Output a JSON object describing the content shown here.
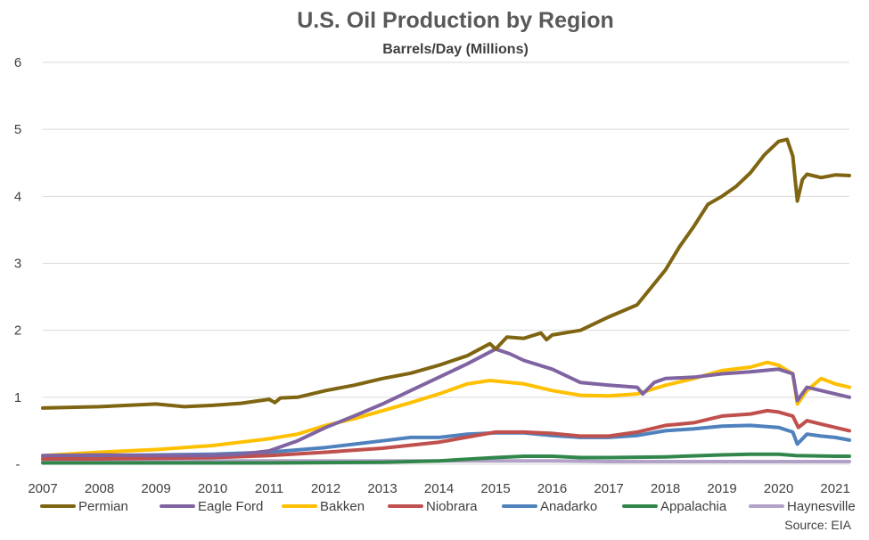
{
  "chart_data": {
    "type": "line",
    "title": "U.S. Oil Production by Region",
    "subtitle": "Barrels/Day (Millions)",
    "xlabel": "",
    "ylabel": "",
    "source": "Source: EIA",
    "xlim": [
      2007.0,
      2021.25
    ],
    "ylim": [
      0,
      6
    ],
    "x_ticks": [
      "2007",
      "2008",
      "2009",
      "2010",
      "2011",
      "2012",
      "2013",
      "2014",
      "2015",
      "2016",
      "2017",
      "2018",
      "2019",
      "2020",
      "2021"
    ],
    "y_ticks": [
      "-",
      "1",
      "2",
      "3",
      "4",
      "5",
      "6"
    ],
    "grid": "horizontal",
    "legend_position": "bottom",
    "series": [
      {
        "name": "Permian",
        "color": "#7F6512",
        "points": [
          [
            2007.0,
            0.84
          ],
          [
            2007.5,
            0.85
          ],
          [
            2008.0,
            0.86
          ],
          [
            2008.5,
            0.88
          ],
          [
            2009.0,
            0.9
          ],
          [
            2009.5,
            0.86
          ],
          [
            2010.0,
            0.88
          ],
          [
            2010.5,
            0.91
          ],
          [
            2011.0,
            0.97
          ],
          [
            2011.1,
            0.92
          ],
          [
            2011.2,
            0.99
          ],
          [
            2011.5,
            1.0
          ],
          [
            2012.0,
            1.1
          ],
          [
            2012.5,
            1.18
          ],
          [
            2013.0,
            1.28
          ],
          [
            2013.5,
            1.36
          ],
          [
            2014.0,
            1.48
          ],
          [
            2014.5,
            1.62
          ],
          [
            2014.9,
            1.8
          ],
          [
            2015.0,
            1.72
          ],
          [
            2015.2,
            1.9
          ],
          [
            2015.5,
            1.88
          ],
          [
            2015.8,
            1.96
          ],
          [
            2015.9,
            1.86
          ],
          [
            2016.0,
            1.93
          ],
          [
            2016.5,
            2.0
          ],
          [
            2017.0,
            2.2
          ],
          [
            2017.5,
            2.38
          ],
          [
            2018.0,
            2.9
          ],
          [
            2018.25,
            3.25
          ],
          [
            2018.5,
            3.55
          ],
          [
            2018.75,
            3.88
          ],
          [
            2019.0,
            4.0
          ],
          [
            2019.25,
            4.15
          ],
          [
            2019.5,
            4.35
          ],
          [
            2019.75,
            4.62
          ],
          [
            2020.0,
            4.82
          ],
          [
            2020.15,
            4.85
          ],
          [
            2020.25,
            4.6
          ],
          [
            2020.33,
            3.93
          ],
          [
            2020.42,
            4.25
          ],
          [
            2020.5,
            4.33
          ],
          [
            2020.75,
            4.28
          ],
          [
            2021.0,
            4.32
          ],
          [
            2021.25,
            4.31
          ]
        ]
      },
      {
        "name": "Eagle Ford",
        "color": "#8064A2",
        "points": [
          [
            2007.0,
            0.13
          ],
          [
            2008.0,
            0.14
          ],
          [
            2009.0,
            0.13
          ],
          [
            2010.0,
            0.13
          ],
          [
            2010.5,
            0.15
          ],
          [
            2011.0,
            0.2
          ],
          [
            2011.5,
            0.35
          ],
          [
            2012.0,
            0.55
          ],
          [
            2012.5,
            0.72
          ],
          [
            2013.0,
            0.9
          ],
          [
            2013.5,
            1.1
          ],
          [
            2014.0,
            1.3
          ],
          [
            2014.5,
            1.5
          ],
          [
            2015.0,
            1.72
          ],
          [
            2015.25,
            1.65
          ],
          [
            2015.5,
            1.55
          ],
          [
            2016.0,
            1.42
          ],
          [
            2016.5,
            1.22
          ],
          [
            2017.0,
            1.18
          ],
          [
            2017.5,
            1.15
          ],
          [
            2017.6,
            1.05
          ],
          [
            2017.8,
            1.22
          ],
          [
            2018.0,
            1.28
          ],
          [
            2018.5,
            1.3
          ],
          [
            2019.0,
            1.35
          ],
          [
            2019.5,
            1.38
          ],
          [
            2020.0,
            1.42
          ],
          [
            2020.25,
            1.35
          ],
          [
            2020.33,
            0.95
          ],
          [
            2020.5,
            1.15
          ],
          [
            2021.0,
            1.05
          ],
          [
            2021.25,
            1.0
          ]
        ]
      },
      {
        "name": "Bakken",
        "color": "#FFC000",
        "points": [
          [
            2007.0,
            0.13
          ],
          [
            2008.0,
            0.18
          ],
          [
            2009.0,
            0.22
          ],
          [
            2009.5,
            0.25
          ],
          [
            2010.0,
            0.28
          ],
          [
            2010.5,
            0.33
          ],
          [
            2011.0,
            0.38
          ],
          [
            2011.5,
            0.45
          ],
          [
            2012.0,
            0.58
          ],
          [
            2012.5,
            0.68
          ],
          [
            2013.0,
            0.8
          ],
          [
            2013.5,
            0.92
          ],
          [
            2014.0,
            1.05
          ],
          [
            2014.5,
            1.2
          ],
          [
            2014.9,
            1.25
          ],
          [
            2015.5,
            1.2
          ],
          [
            2016.0,
            1.1
          ],
          [
            2016.5,
            1.03
          ],
          [
            2017.0,
            1.02
          ],
          [
            2017.5,
            1.05
          ],
          [
            2018.0,
            1.18
          ],
          [
            2018.5,
            1.28
          ],
          [
            2019.0,
            1.4
          ],
          [
            2019.5,
            1.45
          ],
          [
            2019.8,
            1.52
          ],
          [
            2020.0,
            1.48
          ],
          [
            2020.25,
            1.35
          ],
          [
            2020.33,
            0.9
          ],
          [
            2020.5,
            1.1
          ],
          [
            2020.75,
            1.28
          ],
          [
            2021.0,
            1.2
          ],
          [
            2021.25,
            1.15
          ]
        ]
      },
      {
        "name": "Niobrara",
        "color": "#C0504D",
        "points": [
          [
            2007.0,
            0.08
          ],
          [
            2008.0,
            0.08
          ],
          [
            2009.0,
            0.09
          ],
          [
            2010.0,
            0.1
          ],
          [
            2011.0,
            0.13
          ],
          [
            2012.0,
            0.18
          ],
          [
            2013.0,
            0.24
          ],
          [
            2014.0,
            0.33
          ],
          [
            2015.0,
            0.48
          ],
          [
            2015.5,
            0.48
          ],
          [
            2016.0,
            0.46
          ],
          [
            2016.5,
            0.42
          ],
          [
            2017.0,
            0.42
          ],
          [
            2017.5,
            0.48
          ],
          [
            2018.0,
            0.58
          ],
          [
            2018.5,
            0.62
          ],
          [
            2019.0,
            0.72
          ],
          [
            2019.5,
            0.75
          ],
          [
            2019.8,
            0.8
          ],
          [
            2020.0,
            0.78
          ],
          [
            2020.25,
            0.72
          ],
          [
            2020.35,
            0.55
          ],
          [
            2020.5,
            0.65
          ],
          [
            2020.75,
            0.6
          ],
          [
            2021.0,
            0.55
          ],
          [
            2021.25,
            0.5
          ]
        ]
      },
      {
        "name": "Anadarko",
        "color": "#4F81BD",
        "points": [
          [
            2007.0,
            0.12
          ],
          [
            2008.0,
            0.13
          ],
          [
            2009.0,
            0.14
          ],
          [
            2010.0,
            0.15
          ],
          [
            2011.0,
            0.18
          ],
          [
            2012.0,
            0.25
          ],
          [
            2013.0,
            0.35
          ],
          [
            2013.5,
            0.4
          ],
          [
            2014.0,
            0.4
          ],
          [
            2014.5,
            0.45
          ],
          [
            2015.0,
            0.47
          ],
          [
            2015.5,
            0.47
          ],
          [
            2016.0,
            0.43
          ],
          [
            2016.5,
            0.4
          ],
          [
            2017.0,
            0.4
          ],
          [
            2017.5,
            0.43
          ],
          [
            2018.0,
            0.5
          ],
          [
            2018.5,
            0.53
          ],
          [
            2019.0,
            0.57
          ],
          [
            2019.5,
            0.58
          ],
          [
            2020.0,
            0.55
          ],
          [
            2020.25,
            0.48
          ],
          [
            2020.33,
            0.3
          ],
          [
            2020.5,
            0.45
          ],
          [
            2020.75,
            0.42
          ],
          [
            2021.0,
            0.4
          ],
          [
            2021.25,
            0.36
          ]
        ]
      },
      {
        "name": "Appalachia",
        "color": "#31864B",
        "points": [
          [
            2007.0,
            0.02
          ],
          [
            2009.0,
            0.02
          ],
          [
            2011.0,
            0.02
          ],
          [
            2013.0,
            0.03
          ],
          [
            2014.0,
            0.05
          ],
          [
            2015.0,
            0.1
          ],
          [
            2015.5,
            0.12
          ],
          [
            2016.0,
            0.12
          ],
          [
            2016.5,
            0.1
          ],
          [
            2017.0,
            0.1
          ],
          [
            2018.0,
            0.11
          ],
          [
            2019.0,
            0.14
          ],
          [
            2019.5,
            0.15
          ],
          [
            2020.0,
            0.15
          ],
          [
            2020.3,
            0.13
          ],
          [
            2021.0,
            0.12
          ],
          [
            2021.25,
            0.12
          ]
        ]
      },
      {
        "name": "Haynesville",
        "color": "#B2A2C7",
        "points": [
          [
            2007.0,
            0.05
          ],
          [
            2008.0,
            0.05
          ],
          [
            2009.0,
            0.05
          ],
          [
            2010.0,
            0.05
          ],
          [
            2011.0,
            0.05
          ],
          [
            2012.0,
            0.05
          ],
          [
            2013.0,
            0.05
          ],
          [
            2014.0,
            0.05
          ],
          [
            2015.0,
            0.05
          ],
          [
            2016.0,
            0.05
          ],
          [
            2017.0,
            0.04
          ],
          [
            2018.0,
            0.04
          ],
          [
            2019.0,
            0.04
          ],
          [
            2020.0,
            0.04
          ],
          [
            2021.0,
            0.04
          ],
          [
            2021.25,
            0.04
          ]
        ]
      }
    ]
  }
}
